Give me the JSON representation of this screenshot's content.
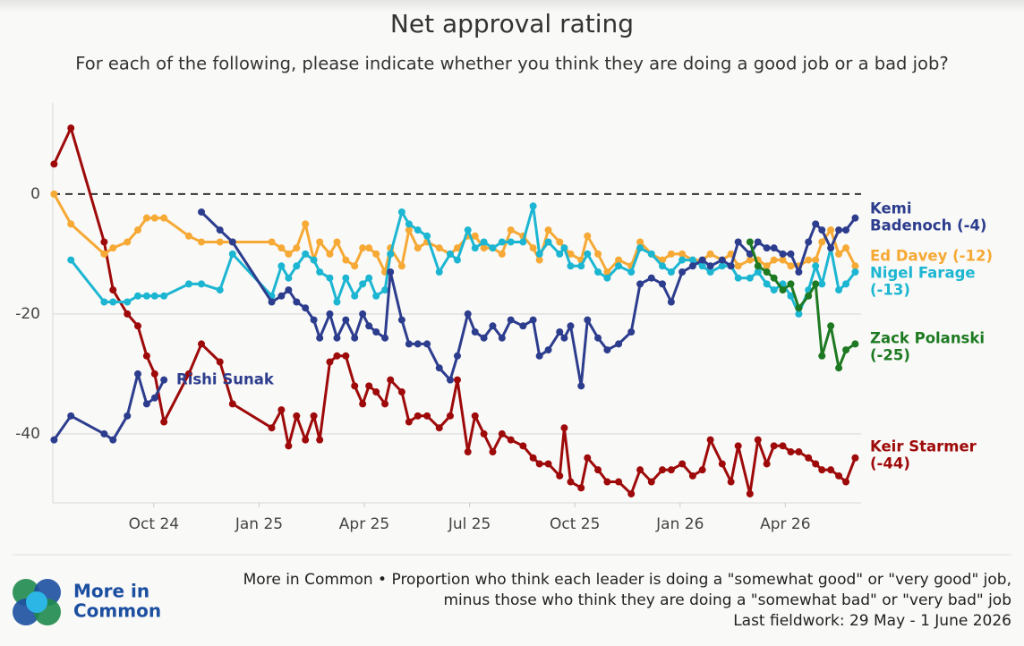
{
  "chart_data": {
    "type": "line",
    "title": "Net approval rating",
    "subtitle": "For each of the following, please indicate whether you think they are doing a good job or a bad job?",
    "x": [
      2024.513,
      2024.553,
      2024.632,
      2024.653,
      2024.687,
      2024.712,
      2024.733,
      2024.752,
      2024.774,
      2024.833,
      2024.863,
      2024.907,
      2024.937,
      2025.03,
      2025.053,
      2025.07,
      2025.089,
      2025.11,
      2025.13,
      2025.144,
      2025.168,
      2025.185,
      2025.206,
      2025.227,
      2025.246,
      2025.261,
      2025.278,
      2025.299,
      2025.312,
      2025.339,
      2025.356,
      2025.377,
      2025.399,
      2025.428,
      2025.454,
      2025.471,
      2025.496,
      2025.513,
      2025.534,
      2025.555,
      2025.577,
      2025.598,
      2025.627,
      2025.651,
      2025.666,
      2025.687,
      2025.714,
      2025.725,
      2025.74,
      2025.765,
      2025.78,
      2025.805,
      2025.827,
      2025.854,
      2025.884,
      2025.905,
      2025.932,
      2025.958,
      2025.979,
      2026.005,
      2026.03,
      2026.053,
      2026.072,
      2026.1,
      2026.121,
      2026.138,
      2026.166,
      2026.185,
      2026.206,
      2026.223,
      2026.244,
      2026.263,
      2026.282,
      2026.305,
      2026.322,
      2026.337,
      2026.358,
      2026.377,
      2026.394,
      2026.416
    ],
    "series": [
      {
        "name": [
          "Keir Starmer",
          "(-44)"
        ],
        "color": "#9e0a0a",
        "values": [
          5,
          11,
          -8,
          -16,
          -20,
          -22,
          -27,
          -30,
          -38,
          -30,
          -25,
          -28,
          -35,
          -39,
          -36,
          -42,
          -37,
          -41,
          -37,
          -41,
          -28,
          -27,
          -27,
          -32,
          -35,
          -32,
          -33,
          -35,
          -31,
          -33,
          -38,
          -37,
          -37,
          -39,
          -37,
          -31,
          -43,
          -37,
          -40,
          -43,
          -40,
          -41,
          -42,
          -44,
          -45,
          -45,
          -47,
          -39,
          -48,
          -49,
          -44,
          -46,
          -48,
          -48,
          -50,
          -46,
          -48,
          -46,
          -46,
          -45,
          -47,
          -46,
          -41,
          -45,
          -48,
          -42,
          -50,
          -41,
          -45,
          -42,
          -42,
          -43,
          -43,
          -44,
          -45,
          -46,
          -46,
          -47,
          -48,
          -44
        ]
      },
      {
        "name": [
          "Ed Davey (-12)"
        ],
        "color": "#f6a935",
        "values": [
          0,
          -5,
          -10,
          -9,
          -8,
          -6,
          -4,
          -4,
          -4,
          -7,
          -8,
          -8,
          -8,
          -8,
          -9,
          -10,
          -9,
          -5,
          -11,
          -8,
          -10,
          -8,
          -11,
          -12,
          -9,
          -9,
          -10,
          -13,
          -9,
          -12,
          -6,
          -9,
          -8,
          -9,
          -10,
          -9,
          -7,
          -7,
          -9,
          -9,
          -10,
          -6,
          -7,
          -9,
          -11,
          -6,
          -8,
          -9,
          -10,
          -11,
          -7,
          -10,
          -13,
          -11,
          -12,
          -8,
          -10,
          -11,
          -10,
          -10,
          -11,
          -11,
          -10,
          -11,
          -10,
          -12,
          -11,
          -11,
          -12,
          -11,
          -11,
          -12,
          -12,
          -11,
          -11,
          -8,
          -6,
          -10,
          -9,
          -12
        ]
      },
      {
        "name": [
          "Nigel Farage",
          "(-13)"
        ],
        "color": "#1cb6d2",
        "values": [
          null,
          -11,
          -18,
          -18,
          -18,
          -17,
          -17,
          -17,
          -17,
          -15,
          -15,
          -16,
          -10,
          -17,
          -12,
          -14,
          -12,
          -10,
          -11,
          -13,
          -14,
          -18,
          -14,
          -17,
          -15,
          -14,
          -17,
          -16,
          -10,
          -3,
          -5,
          -6,
          -7,
          -13,
          -10,
          -11,
          -6,
          -9,
          -8,
          -9,
          -8,
          -8,
          -8,
          -2,
          -10,
          -8,
          -10,
          -9,
          -12,
          -12,
          -10,
          -13,
          -14,
          -12,
          -13,
          -9,
          -10,
          -12,
          -13,
          -11,
          -11,
          -12,
          -13,
          -12,
          -12,
          -14,
          -14,
          -13,
          -15,
          -16,
          -15,
          -17,
          -20,
          -16,
          -12,
          -15,
          -9,
          -16,
          -15,
          -13
        ]
      },
      {
        "name": [
          "Kemi",
          "Badenoch (-4)"
        ],
        "color": "#2d3d8e",
        "values": [
          null,
          null,
          null,
          null,
          null,
          null,
          null,
          null,
          null,
          null,
          -3,
          -6,
          -8,
          -18,
          -17,
          -16,
          -18,
          -19,
          -21,
          -24,
          -20,
          -24,
          -21,
          -24,
          -20,
          -22,
          -23,
          -24,
          -13,
          -21,
          -25,
          -25,
          -25,
          -29,
          -31,
          -27,
          -20,
          -23,
          -24,
          -22,
          -24,
          -21,
          -22,
          -21,
          -27,
          -26,
          -23,
          -24,
          -22,
          -32,
          -21,
          -24,
          -26,
          -25,
          -23,
          -15,
          -14,
          -15,
          -18,
          -13,
          -12,
          -11,
          -12,
          -11,
          -12,
          -8,
          -10,
          -8,
          -9,
          -9,
          -10,
          -10,
          -13,
          -8,
          -5,
          -6,
          -9,
          -6,
          -6,
          -4
        ]
      },
      {
        "name": [
          "Rishi Sunak"
        ],
        "color": "#2d3d8e",
        "values": [
          -41,
          -37,
          -40,
          -41,
          -37,
          -30,
          -35,
          -34,
          -31,
          null,
          null,
          null,
          null,
          null,
          null,
          null,
          null,
          null,
          null,
          null,
          null,
          null,
          null,
          null,
          null,
          null,
          null,
          null,
          null,
          null,
          null,
          null,
          null,
          null,
          null,
          null,
          null,
          null,
          null,
          null,
          null,
          null,
          null,
          null,
          null,
          null,
          null,
          null,
          null,
          null,
          null,
          null,
          null,
          null,
          null,
          null,
          null,
          null,
          null,
          null,
          null,
          null,
          null,
          null,
          null,
          null,
          null,
          null,
          null,
          null,
          null,
          null,
          null,
          null,
          null,
          null,
          null,
          null,
          null,
          null
        ]
      },
      {
        "name": [
          "Zack Polanski",
          "(-25)"
        ],
        "color": "#1e7a22",
        "values": [
          null,
          null,
          null,
          null,
          null,
          null,
          null,
          null,
          null,
          null,
          null,
          null,
          null,
          null,
          null,
          null,
          null,
          null,
          null,
          null,
          null,
          null,
          null,
          null,
          null,
          null,
          null,
          null,
          null,
          null,
          null,
          null,
          null,
          null,
          null,
          null,
          null,
          null,
          null,
          null,
          null,
          null,
          null,
          null,
          null,
          null,
          null,
          null,
          null,
          null,
          null,
          null,
          null,
          null,
          null,
          null,
          null,
          null,
          null,
          null,
          null,
          null,
          null,
          null,
          null,
          null,
          -8,
          -12,
          -13,
          -14,
          -16,
          -15,
          -19,
          -17,
          -15,
          -27,
          -22,
          -29,
          -26,
          -25
        ]
      }
    ],
    "xlim": [
      2024.51,
      2026.43
    ],
    "xticks": [
      {
        "value": 2024.75,
        "label": "Oct 24"
      },
      {
        "value": 2025.0,
        "label": "Jan 25"
      },
      {
        "value": 2025.25,
        "label": "Apr 25"
      },
      {
        "value": 2025.5,
        "label": "Jul 25"
      },
      {
        "value": 2025.75,
        "label": "Oct 25"
      },
      {
        "value": 2026.0,
        "label": "Jan 26"
      },
      {
        "value": 2026.25,
        "label": "Apr 26"
      }
    ],
    "ylim": [
      -51.5,
      15.2
    ],
    "yticks": [
      -40,
      -20,
      0
    ],
    "grid": true,
    "source": "More in Common",
    "logo": [
      "More in",
      "Common"
    ],
    "notes": [
      "More in Common • Proportion who think each leader is doing a \"somewhat good\" or \"very good\" job,",
      "minus those who think they are doing a \"somewhat bad\" or \"very bad\" job",
      "Last fieldwork: 29 May - 1 June 2026"
    ]
  }
}
